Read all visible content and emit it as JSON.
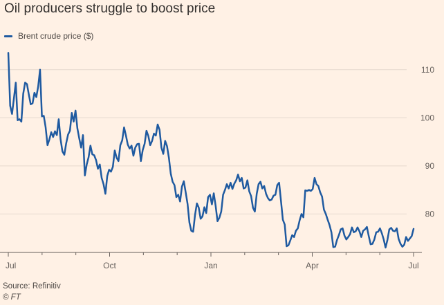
{
  "chart_data": {
    "type": "line",
    "title": "Oil producers struggle to boost price",
    "xlabel": "",
    "ylabel": "",
    "x_tick_labels": [
      "Jul",
      "Oct",
      "Jan",
      "Apr",
      "Jul"
    ],
    "y_ticks": [
      80,
      90,
      100,
      110
    ],
    "ylim": [
      72,
      115
    ],
    "grid": true,
    "legend_position": "top-left",
    "series": [
      {
        "name": "Brent crude price ($)",
        "color": "#1f5aa0",
        "values": [
          113.5,
          102.5,
          100.8,
          104.0,
          107.3,
          99.5,
          99.7,
          99.2,
          105.0,
          107.3,
          107.0,
          104.8,
          102.8,
          103.0,
          105.2,
          104.3,
          106.5,
          110.0,
          100.3,
          100.4,
          98.0,
          94.3,
          95.5,
          97.0,
          96.0,
          97.2,
          96.4,
          99.7,
          95.5,
          93.0,
          92.3,
          94.7,
          96.5,
          97.3,
          101.0,
          99.2,
          101.5,
          97.8,
          95.7,
          93.8,
          96.4,
          88.0,
          90.3,
          91.8,
          94.2,
          92.4,
          92.2,
          91.2,
          89.4,
          90.3,
          87.5,
          86.2,
          84.2,
          87.9,
          89.2,
          88.8,
          89.8,
          93.2,
          91.7,
          91.0,
          94.3,
          95.3,
          98.0,
          96.3,
          94.4,
          93.6,
          94.2,
          92.1,
          93.8,
          94.5,
          94.6,
          91.0,
          93.3,
          94.6,
          97.3,
          96.2,
          94.3,
          95.2,
          96.7,
          96.3,
          98.6,
          97.5,
          93.8,
          92.5,
          95.2,
          94.1,
          91.7,
          88.4,
          86.7,
          86.0,
          83.5,
          84.0,
          82.6,
          85.7,
          86.8,
          84.5,
          82.1,
          78.2,
          76.5,
          76.3,
          79.8,
          82.2,
          81.3,
          79.0,
          79.5,
          81.4,
          80.2,
          83.5,
          84.0,
          82.0,
          84.3,
          81.7,
          78.5,
          79.2,
          80.5,
          84.0,
          85.0,
          86.2,
          85.3,
          86.5,
          85.2,
          86.3,
          87.0,
          88.2,
          86.8,
          87.5,
          85.3,
          85.5,
          87.0,
          84.7,
          83.7,
          81.3,
          80.5,
          84.2,
          86.2,
          86.7,
          85.3,
          85.8,
          84.2,
          83.3,
          82.8,
          83.0,
          83.8,
          84.0,
          86.0,
          86.5,
          82.7,
          78.8,
          77.8,
          73.3,
          73.5,
          74.5,
          75.6,
          75.2,
          76.5,
          77.0,
          78.7,
          80.0,
          79.3,
          84.9,
          84.8,
          85.0,
          84.8,
          85.2,
          87.5,
          86.2,
          85.8,
          84.5,
          83.6,
          80.9,
          80.0,
          78.8,
          77.7,
          76.2,
          73.1,
          73.2,
          74.6,
          75.6,
          76.8,
          77.0,
          75.5,
          74.7,
          75.2,
          75.8,
          77.2,
          76.2,
          76.4,
          77.2,
          76.4,
          75.2,
          76.5,
          76.8,
          77.3,
          75.4,
          73.7,
          73.8,
          74.7,
          76.2,
          76.3,
          77.0,
          76.0,
          74.7,
          73.0,
          74.6,
          76.8,
          77.1,
          76.5,
          76.4,
          77.0,
          74.8,
          73.8,
          73.2,
          73.6,
          75.2,
          74.4,
          74.9,
          75.4,
          76.9
        ]
      }
    ]
  },
  "footer": {
    "source": "Source: Refinitiv",
    "credit": "© FT"
  }
}
